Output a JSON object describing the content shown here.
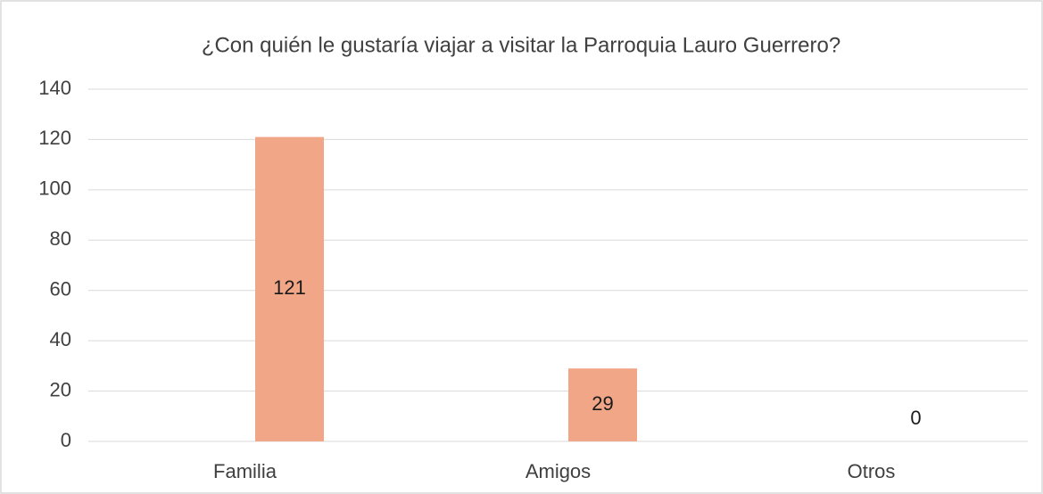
{
  "chart_data": {
    "type": "bar",
    "title": "¿Con quién le gustaría viajar a visitar la Parroquia Lauro Guerrero?",
    "categories": [
      "Familia",
      "Amigos",
      "Otros"
    ],
    "values": [
      121,
      29,
      0
    ],
    "color": "#f1a787",
    "ylim": [
      0,
      140
    ],
    "yticks": [
      0,
      20,
      40,
      60,
      80,
      100,
      120,
      140
    ],
    "grid": true
  }
}
